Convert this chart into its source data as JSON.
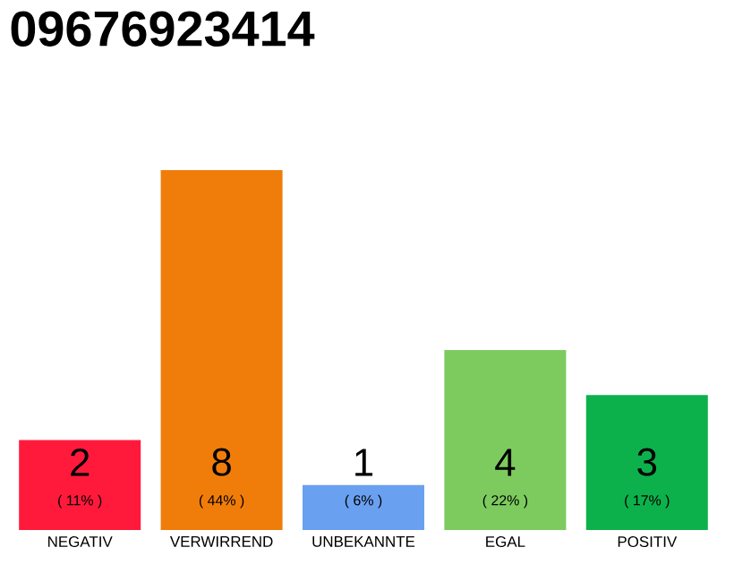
{
  "chart_data": {
    "type": "bar",
    "title": "09676923414",
    "categories": [
      "NEGATIV",
      "VERWIRREND",
      "UNBEKANNTE",
      "EGAL",
      "POSITIV"
    ],
    "values": [
      2,
      8,
      1,
      4,
      3
    ],
    "colors": [
      "#ff1a3c",
      "#f07d0a",
      "#6aa0f0",
      "#7dcb5e",
      "#0db14b"
    ],
    "ylim": [
      0,
      8
    ],
    "tick_labels": "x",
    "data_labels": true,
    "annotations": [
      "( 11% )",
      "( 44% )",
      "( 6% )",
      "( 22% )",
      "( 17% )"
    ]
  }
}
